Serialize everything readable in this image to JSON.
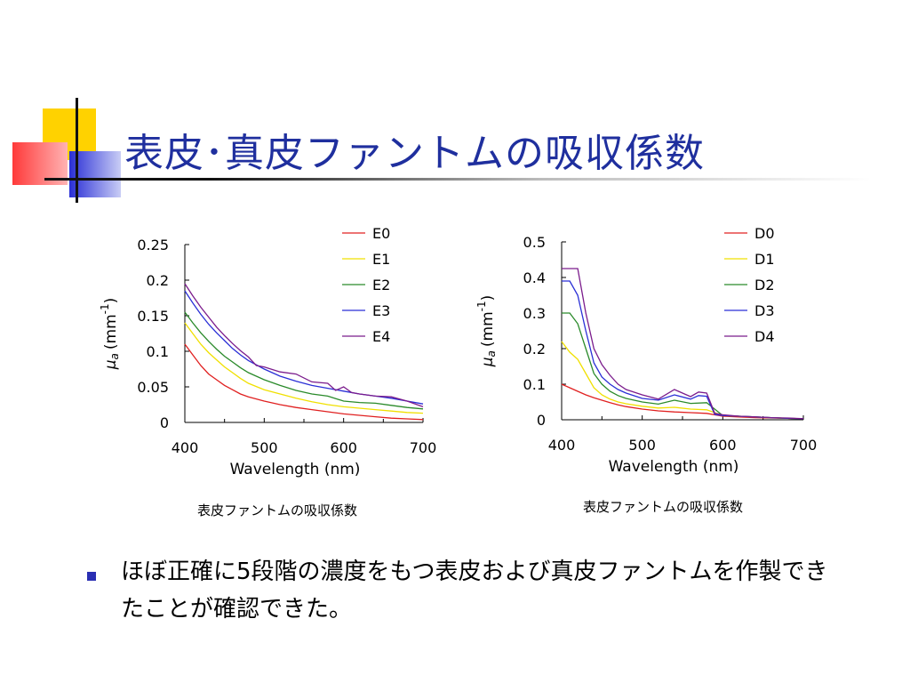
{
  "slide": {
    "title": "表皮･真皮ファントムの吸収係数",
    "bullet": "ほぼ正確に5段階の濃度をもつ表皮および真皮ファントムを作製できたことが確認できた。"
  },
  "colors": {
    "title": "#1f2f9e",
    "deco_yellow": "#ffd200",
    "deco_red": "#ff3a3a",
    "deco_blue": "#2a2fd6"
  },
  "chart_data": [
    {
      "type": "line",
      "caption": "表皮ファントムの吸収係数",
      "xlabel": "Wavelength (nm)",
      "ylabel_symbol": "μ",
      "ylabel_sub": "a",
      "ylabel_unit": "(mm",
      "ylabel_sup": "-1",
      "ylabel_close": ")",
      "xlim": [
        400,
        700
      ],
      "ylim": [
        0,
        0.25
      ],
      "xticks": [
        "400",
        "500",
        "600",
        "700"
      ],
      "yticks": [
        "0",
        "0.05",
        "0.1",
        "0.15",
        "0.2",
        "0.25"
      ],
      "legend_position": "top-right",
      "series": [
        {
          "name": "E0",
          "color": "#e02020",
          "x": [
            400,
            410,
            420,
            430,
            440,
            450,
            460,
            470,
            480,
            500,
            520,
            540,
            560,
            580,
            600,
            620,
            640,
            660,
            680,
            700
          ],
          "y": [
            0.11,
            0.095,
            0.08,
            0.068,
            0.06,
            0.052,
            0.046,
            0.04,
            0.036,
            0.03,
            0.025,
            0.021,
            0.018,
            0.015,
            0.012,
            0.01,
            0.008,
            0.006,
            0.005,
            0.004
          ]
        },
        {
          "name": "E1",
          "color": "#f0e000",
          "x": [
            400,
            410,
            420,
            430,
            440,
            450,
            460,
            470,
            480,
            500,
            520,
            540,
            560,
            580,
            600,
            620,
            640,
            660,
            680,
            700
          ],
          "y": [
            0.14,
            0.125,
            0.11,
            0.098,
            0.088,
            0.078,
            0.07,
            0.062,
            0.055,
            0.046,
            0.04,
            0.034,
            0.029,
            0.025,
            0.022,
            0.02,
            0.018,
            0.016,
            0.014,
            0.013
          ]
        },
        {
          "name": "E2",
          "color": "#2a8a2a",
          "x": [
            400,
            410,
            420,
            430,
            440,
            450,
            460,
            470,
            480,
            500,
            520,
            540,
            560,
            580,
            600,
            620,
            640,
            660,
            680,
            700
          ],
          "y": [
            0.155,
            0.14,
            0.126,
            0.114,
            0.103,
            0.093,
            0.085,
            0.077,
            0.07,
            0.06,
            0.052,
            0.045,
            0.04,
            0.037,
            0.03,
            0.028,
            0.027,
            0.024,
            0.021,
            0.019
          ]
        },
        {
          "name": "E3",
          "color": "#2a2fd6",
          "x": [
            400,
            410,
            420,
            430,
            440,
            450,
            460,
            470,
            480,
            500,
            520,
            540,
            560,
            580,
            600,
            620,
            640,
            660,
            680,
            700
          ],
          "y": [
            0.185,
            0.168,
            0.152,
            0.138,
            0.126,
            0.115,
            0.104,
            0.095,
            0.087,
            0.075,
            0.065,
            0.058,
            0.052,
            0.048,
            0.044,
            0.04,
            0.037,
            0.034,
            0.03,
            0.026
          ]
        },
        {
          "name": "E4",
          "color": "#7b1c8c",
          "x": [
            400,
            410,
            420,
            430,
            440,
            450,
            460,
            470,
            480,
            490,
            500,
            520,
            540,
            560,
            580,
            590,
            600,
            610,
            620,
            640,
            660,
            680,
            700
          ],
          "y": [
            0.195,
            0.178,
            0.162,
            0.148,
            0.134,
            0.122,
            0.111,
            0.101,
            0.092,
            0.08,
            0.078,
            0.071,
            0.068,
            0.057,
            0.055,
            0.045,
            0.05,
            0.042,
            0.04,
            0.037,
            0.036,
            0.03,
            0.022
          ]
        }
      ]
    },
    {
      "type": "line",
      "caption": "表皮ファントムの吸収係数",
      "xlabel": "Wavelength (nm)",
      "ylabel_symbol": "μ",
      "ylabel_sub": "a",
      "ylabel_unit": "(mm",
      "ylabel_sup": "-1",
      "ylabel_close": ")",
      "xlim": [
        400,
        700
      ],
      "ylim": [
        0,
        0.5
      ],
      "xticks": [
        "400",
        "500",
        "600",
        "700"
      ],
      "yticks": [
        "0",
        "0.1",
        "0.2",
        "0.3",
        "0.4",
        "0.5"
      ],
      "legend_position": "top-right",
      "series": [
        {
          "name": "D0",
          "color": "#e02020",
          "x": [
            400,
            410,
            420,
            430,
            440,
            450,
            460,
            470,
            480,
            500,
            520,
            540,
            560,
            580,
            600,
            620,
            640,
            660,
            680,
            700
          ],
          "y": [
            0.1,
            0.09,
            0.08,
            0.07,
            0.062,
            0.055,
            0.048,
            0.042,
            0.037,
            0.03,
            0.025,
            0.022,
            0.02,
            0.018,
            0.01,
            0.008,
            0.006,
            0.005,
            0.004,
            0.003
          ]
        },
        {
          "name": "D1",
          "color": "#f0e000",
          "x": [
            400,
            410,
            420,
            430,
            440,
            450,
            460,
            470,
            480,
            500,
            520,
            540,
            560,
            580,
            600,
            620,
            640,
            660,
            680,
            700
          ],
          "y": [
            0.22,
            0.19,
            0.17,
            0.13,
            0.09,
            0.07,
            0.058,
            0.05,
            0.045,
            0.038,
            0.033,
            0.035,
            0.03,
            0.028,
            0.012,
            0.01,
            0.008,
            0.006,
            0.004,
            0.003
          ]
        },
        {
          "name": "D2",
          "color": "#2a8a2a",
          "x": [
            400,
            410,
            420,
            430,
            440,
            450,
            460,
            470,
            480,
            500,
            520,
            540,
            560,
            580,
            600,
            620,
            640,
            660,
            680,
            700
          ],
          "y": [
            0.3,
            0.3,
            0.27,
            0.2,
            0.13,
            0.1,
            0.08,
            0.068,
            0.06,
            0.05,
            0.044,
            0.055,
            0.046,
            0.048,
            0.012,
            0.01,
            0.008,
            0.006,
            0.004,
            0.003
          ]
        },
        {
          "name": "D3",
          "color": "#2a2fd6",
          "x": [
            400,
            410,
            420,
            430,
            440,
            450,
            460,
            470,
            480,
            500,
            520,
            540,
            560,
            570,
            580,
            590,
            600,
            620,
            640,
            660,
            680,
            700
          ],
          "y": [
            0.39,
            0.39,
            0.35,
            0.25,
            0.16,
            0.12,
            0.1,
            0.085,
            0.075,
            0.06,
            0.055,
            0.07,
            0.058,
            0.068,
            0.066,
            0.015,
            0.012,
            0.01,
            0.008,
            0.006,
            0.004,
            0.003
          ]
        },
        {
          "name": "D4",
          "color": "#7b1c8c",
          "x": [
            400,
            410,
            420,
            430,
            440,
            450,
            460,
            470,
            480,
            500,
            520,
            540,
            550,
            560,
            570,
            580,
            590,
            600,
            620,
            640,
            660,
            680,
            700
          ],
          "y": [
            0.425,
            0.425,
            0.425,
            0.3,
            0.2,
            0.155,
            0.125,
            0.1,
            0.085,
            0.07,
            0.058,
            0.085,
            0.075,
            0.065,
            0.078,
            0.075,
            0.018,
            0.014,
            0.01,
            0.008,
            0.006,
            0.005,
            0.003
          ]
        }
      ]
    }
  ]
}
